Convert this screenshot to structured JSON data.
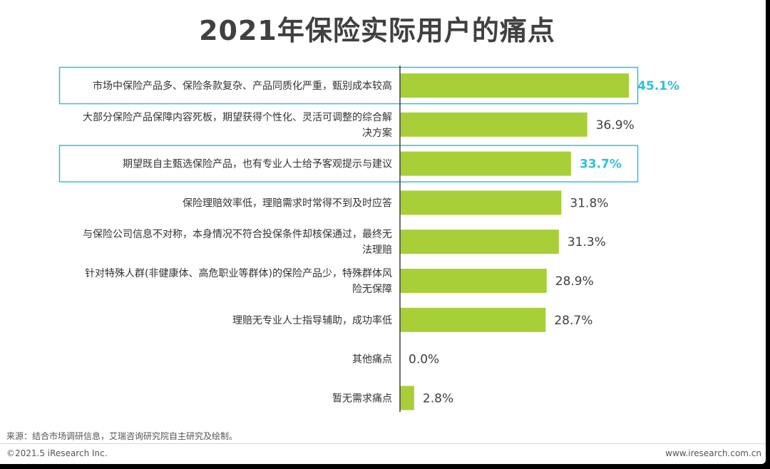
{
  "chart_data": {
    "type": "bar",
    "orientation": "horizontal",
    "title": "2021年保险实际用户的痛点",
    "categories": [
      [
        "市场中保险产品多、保险条款复杂、产品同质化严重，甄别成本较高"
      ],
      [
        "大部分保险产品保障内容死板，期望获得个性化、灵活可调整的综合解",
        "决方案"
      ],
      [
        "期望既自主甄选保险产品，也有专业人士给予客观提示与建议"
      ],
      [
        "保险理赔效率低，理赔需求时常得不到及时应答"
      ],
      [
        "与保险公司信息不对称，本身情况不符合投保条件却核保通过，最终无",
        "法理赔"
      ],
      [
        "针对特殊人群(非健康体、高危职业等群体)的保险产品少，特殊群体风",
        "险无保障"
      ],
      [
        "理赔无专业人士指导辅助，成功率低"
      ],
      [
        "其他痛点"
      ],
      [
        "暂无需求痛点"
      ]
    ],
    "values": [
      45.1,
      36.9,
      33.7,
      31.8,
      31.3,
      28.9,
      28.7,
      0.0,
      2.8
    ],
    "value_labels": [
      "45.1%",
      "36.9%",
      "33.7%",
      "31.8%",
      "31.3%",
      "28.9%",
      "28.7%",
      "0.0%",
      "2.8%"
    ],
    "highlighted": [
      true,
      false,
      true,
      false,
      false,
      false,
      false,
      false,
      false
    ],
    "xlim": [
      0,
      50
    ],
    "xlabel": "",
    "ylabel": "",
    "grid": false,
    "legend": "none"
  },
  "colors": {
    "bar": "#a8cf38",
    "highlight": "#2fbfe0",
    "axis": "#404040"
  },
  "footer": {
    "source": "来源：结合市场调研信息，艾瑞咨询研究院自主研究及绘制。",
    "copyright": "©2021.5 iResearch Inc.",
    "website": "www.iresearch.com.cn"
  }
}
